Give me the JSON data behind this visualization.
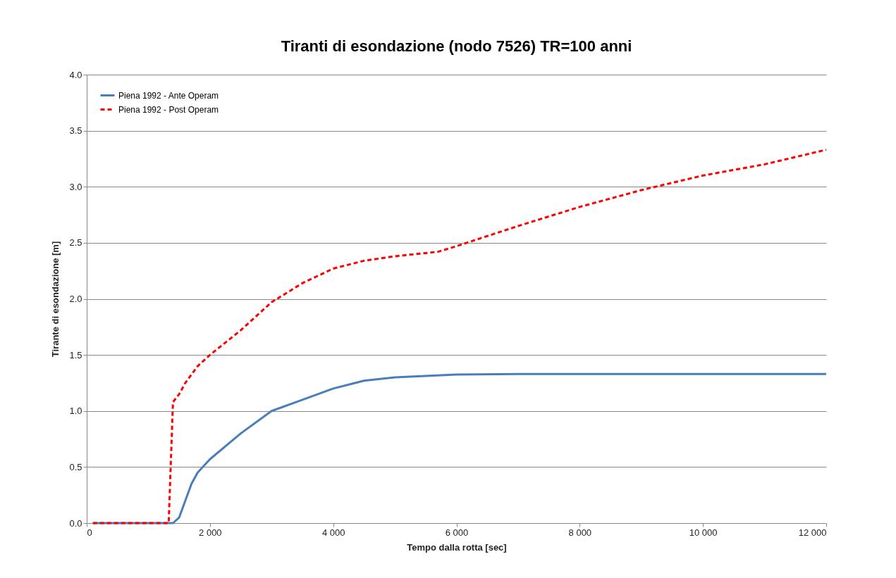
{
  "chart_data": {
    "type": "line",
    "title": "Tiranti di esondazione (nodo 7526) TR=100 anni",
    "xlabel": "Tempo dalla rotta [sec]",
    "ylabel": "Tirante di esondazione [m]",
    "series": [
      {
        "name": "Piena 1992 - Ante Operam",
        "color": "#4a7ebb",
        "line_style": "solid",
        "x": [
          100,
          1000,
          1400,
          1500,
          1600,
          1700,
          1800,
          2000,
          2500,
          3000,
          3500,
          4000,
          4500,
          5000,
          6000,
          7000,
          8000,
          10000,
          12000
        ],
        "values": [
          0,
          0,
          0,
          0.05,
          0.2,
          0.35,
          0.45,
          0.57,
          0.8,
          1.0,
          1.1,
          1.2,
          1.27,
          1.3,
          1.325,
          1.33,
          1.33,
          1.33,
          1.33
        ]
      },
      {
        "name": "Piena 1992 - Post Operam",
        "color": "#ff0000",
        "line_style": "dashed",
        "x": [
          100,
          1000,
          1330,
          1400,
          1500,
          1600,
          1800,
          2000,
          2500,
          3000,
          3500,
          4000,
          4500,
          5000,
          5700,
          6000,
          7000,
          8000,
          9000,
          10000,
          11000,
          12000
        ],
        "values": [
          0,
          0,
          0,
          1.08,
          1.15,
          1.25,
          1.4,
          1.5,
          1.72,
          1.97,
          2.14,
          2.27,
          2.34,
          2.38,
          2.42,
          2.47,
          2.65,
          2.82,
          2.97,
          3.1,
          3.2,
          3.33
        ]
      }
    ],
    "xlim": [
      0,
      12000
    ],
    "xticks": [
      0,
      {
        "value": 2000,
        "label": "2 000"
      },
      {
        "value": 4000,
        "label": "4 000"
      },
      {
        "value": 6000,
        "label": "6 000"
      },
      {
        "value": 8000,
        "label": "8 000"
      },
      {
        "value": 10000,
        "label": "10 000"
      },
      {
        "value": 12000,
        "label": "12 000"
      }
    ],
    "ylim": [
      0,
      4
    ],
    "yticks": [
      {
        "value": 0,
        "label": "0.0"
      },
      0.5,
      {
        "value": 1,
        "label": "1.0"
      },
      1.5,
      {
        "value": 2,
        "label": "2.0"
      },
      2.5,
      {
        "value": 3,
        "label": "3.0"
      },
      3.5,
      {
        "value": 4,
        "label": "4.0"
      }
    ],
    "grid": "y",
    "legend": "top left"
  }
}
